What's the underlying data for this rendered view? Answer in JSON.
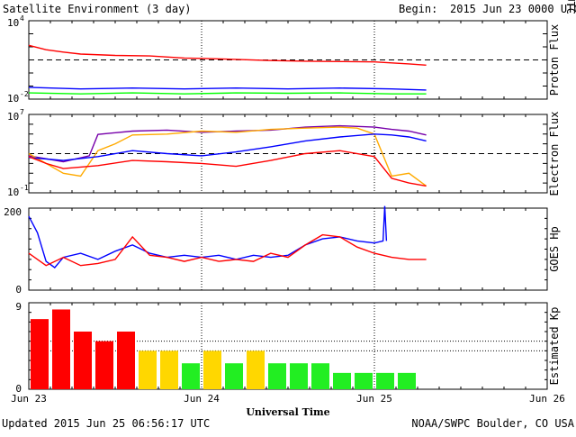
{
  "header": {
    "title": "Satellite Environment (3 day)",
    "begin_label": "Begin:",
    "begin_value": "2015 Jun 23 0000 UTC"
  },
  "footer": {
    "updated": "Updated 2015 Jun 25 06:56:17 UTC",
    "credit": "NOAA/SWPC Boulder, CO USA"
  },
  "x_axis": {
    "label": "Universal Time",
    "ticks": [
      "Jun 23",
      "Jun 24",
      "Jun 25",
      "Jun 26"
    ]
  },
  "colors": {
    "red": "#ff0000",
    "blue": "#0000ff",
    "green": "#00ff00",
    "purple": "#7700aa",
    "orange": "#ffaa00",
    "kp_red": "#ff0000",
    "kp_yellow": "#ffd700",
    "kp_green": "#22ee22"
  },
  "chart_data": [
    {
      "type": "line",
      "ylabel": "Proton Flux",
      "yscale": "log",
      "ylim": [
        0.01,
        10000
      ],
      "yticks": [
        {
          "base": "10",
          "exp": "4"
        },
        {
          "base": "10",
          "exp": "-2"
        }
      ],
      "threshold": 10,
      "x_unit": "days since Jun 23 00:00 UTC",
      "series": [
        {
          "color": "red",
          "x": [
            0,
            0.1,
            0.2,
            0.3,
            0.5,
            0.7,
            0.9,
            1.0,
            1.2,
            1.4,
            1.6,
            1.8,
            2.0,
            2.2,
            2.3
          ],
          "y": [
            130,
            60,
            40,
            28,
            22,
            20,
            14,
            13,
            11,
            9,
            8,
            7.5,
            7,
            5,
            4
          ]
        },
        {
          "color": "blue",
          "x": [
            0,
            0.3,
            0.6,
            0.9,
            1.2,
            1.5,
            1.8,
            2.1,
            2.3
          ],
          "y": [
            0.08,
            0.06,
            0.07,
            0.06,
            0.07,
            0.06,
            0.07,
            0.06,
            0.05
          ]
        },
        {
          "color": "green",
          "x": [
            0,
            0.3,
            0.6,
            0.9,
            1.2,
            1.5,
            1.8,
            2.1,
            2.3
          ],
          "y": [
            0.03,
            0.025,
            0.03,
            0.025,
            0.03,
            0.028,
            0.03,
            0.025,
            0.025
          ]
        }
      ]
    },
    {
      "type": "line",
      "ylabel": "Electron Flux",
      "yscale": "log",
      "ylim": [
        0.1,
        10000000
      ],
      "yticks": [
        {
          "base": "10",
          "exp": "7"
        },
        {
          "base": "10",
          "exp": "-1"
        }
      ],
      "threshold": 1000,
      "x_unit": "days since Jun 23 00:00 UTC",
      "series": [
        {
          "color": "purple",
          "x": [
            0,
            0.2,
            0.35,
            0.4,
            0.6,
            0.8,
            1.0,
            1.2,
            1.4,
            1.6,
            1.8,
            2.0,
            2.1,
            2.2,
            2.3
          ],
          "y": [
            600,
            150,
            600,
            90000,
            200000,
            250000,
            150000,
            200000,
            250000,
            500000,
            700000,
            500000,
            300000,
            200000,
            80000
          ]
        },
        {
          "color": "orange",
          "x": [
            0,
            0.1,
            0.2,
            0.3,
            0.4,
            0.5,
            0.6,
            0.8,
            1.0,
            1.2,
            1.4,
            1.6,
            1.8,
            1.9,
            2.0,
            2.1,
            2.2,
            2.3
          ],
          "y": [
            1000,
            100,
            10,
            5,
            2000,
            10000,
            80000,
            100000,
            200000,
            150000,
            300000,
            400000,
            500000,
            400000,
            100000,
            5,
            10,
            0.5
          ]
        },
        {
          "color": "blue",
          "x": [
            0,
            0.2,
            0.4,
            0.6,
            0.8,
            1.0,
            1.2,
            1.4,
            1.6,
            1.8,
            2.0,
            2.1,
            2.2,
            2.3
          ],
          "y": [
            400,
            200,
            500,
            2000,
            1000,
            600,
            1500,
            5000,
            20000,
            50000,
            100000,
            80000,
            50000,
            20000
          ]
        },
        {
          "color": "red",
          "x": [
            0,
            0.1,
            0.2,
            0.4,
            0.6,
            0.8,
            1.0,
            1.2,
            1.4,
            1.6,
            1.8,
            2.0,
            2.1,
            2.2,
            2.3
          ],
          "y": [
            500,
            100,
            30,
            60,
            200,
            150,
            100,
            50,
            200,
            1000,
            2000,
            500,
            3,
            1,
            0.5
          ]
        }
      ]
    },
    {
      "type": "line",
      "ylabel": "GOES Hp",
      "ylim": [
        0,
        200
      ],
      "yticks": [
        "200",
        "0"
      ],
      "x_unit": "days since Jun 23 00:00 UTC",
      "series": [
        {
          "color": "blue",
          "x": [
            0,
            0.05,
            0.1,
            0.15,
            0.2,
            0.3,
            0.4,
            0.5,
            0.6,
            0.7,
            0.8,
            0.9,
            1.0,
            1.1,
            1.2,
            1.3,
            1.4,
            1.5,
            1.6,
            1.7,
            1.8,
            1.9,
            2.0,
            2.05,
            2.06,
            2.07
          ],
          "y": [
            180,
            140,
            70,
            55,
            80,
            90,
            75,
            95,
            110,
            90,
            80,
            85,
            80,
            85,
            75,
            85,
            80,
            85,
            110,
            125,
            130,
            120,
            115,
            120,
            205,
            120
          ]
        },
        {
          "color": "red",
          "x": [
            0,
            0.1,
            0.2,
            0.3,
            0.4,
            0.5,
            0.6,
            0.7,
            0.8,
            0.9,
            1.0,
            1.1,
            1.2,
            1.3,
            1.4,
            1.5,
            1.6,
            1.7,
            1.8,
            1.9,
            2.0,
            2.1,
            2.2,
            2.3
          ],
          "y": [
            90,
            60,
            80,
            60,
            65,
            75,
            130,
            85,
            80,
            70,
            80,
            70,
            75,
            70,
            90,
            80,
            110,
            135,
            130,
            105,
            90,
            80,
            75,
            75
          ]
        }
      ]
    },
    {
      "type": "bar",
      "ylabel": "Estimated Kp",
      "ylim": [
        0,
        9
      ],
      "yticks": [
        "9",
        "0"
      ],
      "gridlines": [
        5,
        4
      ],
      "bar_width_days": 0.125,
      "x_unit": "days since Jun 23 00:00 UTC",
      "x_start": [
        0,
        0.125,
        0.25,
        0.375,
        0.5,
        0.625,
        0.75,
        0.875,
        1.0,
        1.125,
        1.25,
        1.375,
        1.5,
        1.625,
        1.75,
        1.875,
        2.0,
        2.125
      ],
      "values": [
        7.3,
        8.3,
        6.0,
        5.0,
        6.0,
        4.0,
        4.0,
        2.7,
        4.0,
        2.7,
        4.0,
        2.7,
        2.7,
        2.7,
        1.7,
        1.7,
        1.7,
        1.7
      ],
      "colors": [
        "kp_red",
        "kp_red",
        "kp_red",
        "kp_red",
        "kp_red",
        "kp_yellow",
        "kp_yellow",
        "kp_green",
        "kp_yellow",
        "kp_green",
        "kp_yellow",
        "kp_green",
        "kp_green",
        "kp_green",
        "kp_green",
        "kp_green",
        "kp_green",
        "kp_green"
      ]
    }
  ]
}
